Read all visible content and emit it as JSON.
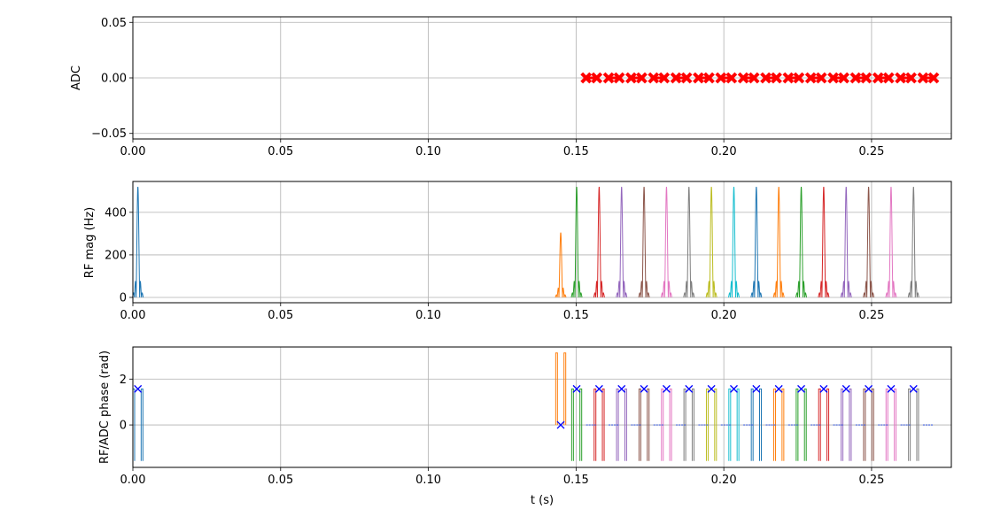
{
  "chart_data": [
    {
      "type": "scatter",
      "ylabel": "ADC",
      "xlim": [
        0.0,
        0.277
      ],
      "ylim": [
        -0.055,
        0.055
      ],
      "grid": true,
      "x_ticks": [
        "0.00",
        "0.05",
        "0.10",
        "0.15",
        "0.20",
        "0.25"
      ],
      "y_ticks": [
        {
          "value": 0.05,
          "label": "0.05"
        },
        {
          "value": 0.0,
          "label": "0.00"
        },
        {
          "value": -0.05,
          "label": "−0.05"
        }
      ],
      "adc_windows": [
        {
          "start": 0.1534,
          "end": 0.157
        },
        {
          "start": 0.161,
          "end": 0.1646
        },
        {
          "start": 0.1686,
          "end": 0.1722
        },
        {
          "start": 0.1762,
          "end": 0.1798
        },
        {
          "start": 0.1838,
          "end": 0.1874
        },
        {
          "start": 0.1914,
          "end": 0.195
        },
        {
          "start": 0.199,
          "end": 0.2026
        },
        {
          "start": 0.2066,
          "end": 0.2102
        },
        {
          "start": 0.2142,
          "end": 0.2178
        },
        {
          "start": 0.2218,
          "end": 0.2254
        },
        {
          "start": 0.2294,
          "end": 0.233
        },
        {
          "start": 0.237,
          "end": 0.2406
        },
        {
          "start": 0.2446,
          "end": 0.2482
        },
        {
          "start": 0.2522,
          "end": 0.2558
        },
        {
          "start": 0.2598,
          "end": 0.2634
        },
        {
          "start": 0.2674,
          "end": 0.271
        }
      ],
      "marker_color": "#ff0000",
      "value": 0.0
    },
    {
      "type": "line",
      "ylabel": "RF mag (Hz)",
      "xlim": [
        0.0,
        0.277
      ],
      "ylim": [
        -25,
        545
      ],
      "grid": true,
      "x_ticks": [
        "0.00",
        "0.05",
        "0.10",
        "0.15",
        "0.20",
        "0.25"
      ],
      "y_ticks": [
        {
          "value": 400,
          "label": "400"
        },
        {
          "value": 200,
          "label": "200"
        },
        {
          "value": 0,
          "label": "0"
        }
      ],
      "pulses": [
        {
          "center": 0.0017,
          "peak": 520,
          "color": "#1f77b4"
        },
        {
          "center": 0.1448,
          "peak": 305,
          "color": "#ff7f0e"
        },
        {
          "center": 0.1502,
          "peak": 520,
          "color": "#2ca02c"
        },
        {
          "center": 0.1578,
          "peak": 520,
          "color": "#d62728"
        },
        {
          "center": 0.1654,
          "peak": 520,
          "color": "#9467bd"
        },
        {
          "center": 0.173,
          "peak": 520,
          "color": "#8c564b"
        },
        {
          "center": 0.1806,
          "peak": 520,
          "color": "#e377c2"
        },
        {
          "center": 0.1882,
          "peak": 520,
          "color": "#7f7f7f"
        },
        {
          "center": 0.1958,
          "peak": 520,
          "color": "#bcbd22"
        },
        {
          "center": 0.2034,
          "peak": 520,
          "color": "#17becf"
        },
        {
          "center": 0.211,
          "peak": 520,
          "color": "#1f77b4"
        },
        {
          "center": 0.2186,
          "peak": 520,
          "color": "#ff7f0e"
        },
        {
          "center": 0.2262,
          "peak": 520,
          "color": "#2ca02c"
        },
        {
          "center": 0.2338,
          "peak": 520,
          "color": "#d62728"
        },
        {
          "center": 0.2414,
          "peak": 520,
          "color": "#9467bd"
        },
        {
          "center": 0.249,
          "peak": 520,
          "color": "#8c564b"
        },
        {
          "center": 0.2566,
          "peak": 520,
          "color": "#e377c2"
        },
        {
          "center": 0.2642,
          "peak": 520,
          "color": "#7f7f7f"
        }
      ]
    },
    {
      "type": "line",
      "ylabel": "RF/ADC phase (rad)",
      "xlabel": "t (s)",
      "xlim": [
        0.0,
        0.277
      ],
      "ylim": [
        -1.85,
        3.4
      ],
      "grid": true,
      "x_ticks": [
        "0.00",
        "0.05",
        "0.10",
        "0.15",
        "0.20",
        "0.25"
      ],
      "y_ticks": [
        {
          "value": 2,
          "label": "2"
        },
        {
          "value": 0,
          "label": "0"
        }
      ],
      "phase_pulses": [
        {
          "center": 0.0017,
          "color": "#1f77b4",
          "marker_phase": 1.571
        },
        {
          "center": 0.1448,
          "color": "#ff7f0e",
          "marker_phase": 0.0
        },
        {
          "center": 0.1502,
          "color": "#2ca02c",
          "marker_phase": 1.571
        },
        {
          "center": 0.1578,
          "color": "#d62728",
          "marker_phase": 1.571
        },
        {
          "center": 0.1654,
          "color": "#9467bd",
          "marker_phase": 1.571
        },
        {
          "center": 0.173,
          "color": "#8c564b",
          "marker_phase": 1.571
        },
        {
          "center": 0.1806,
          "color": "#e377c2",
          "marker_phase": 1.571
        },
        {
          "center": 0.1882,
          "color": "#7f7f7f",
          "marker_phase": 1.571
        },
        {
          "center": 0.1958,
          "color": "#bcbd22",
          "marker_phase": 1.571
        },
        {
          "center": 0.2034,
          "color": "#17becf",
          "marker_phase": 1.571
        },
        {
          "center": 0.211,
          "color": "#1f77b4",
          "marker_phase": 1.571
        },
        {
          "center": 0.2186,
          "color": "#ff7f0e",
          "marker_phase": 1.571
        },
        {
          "center": 0.2262,
          "color": "#2ca02c",
          "marker_phase": 1.571
        },
        {
          "center": 0.2338,
          "color": "#d62728",
          "marker_phase": 1.571
        },
        {
          "center": 0.2414,
          "color": "#9467bd",
          "marker_phase": 1.571
        },
        {
          "center": 0.249,
          "color": "#8c564b",
          "marker_phase": 1.571
        },
        {
          "center": 0.2566,
          "color": "#e377c2",
          "marker_phase": 1.571
        },
        {
          "center": 0.2642,
          "color": "#7f7f7f",
          "marker_phase": 1.571
        }
      ],
      "marker_color": "#0000ff"
    }
  ]
}
